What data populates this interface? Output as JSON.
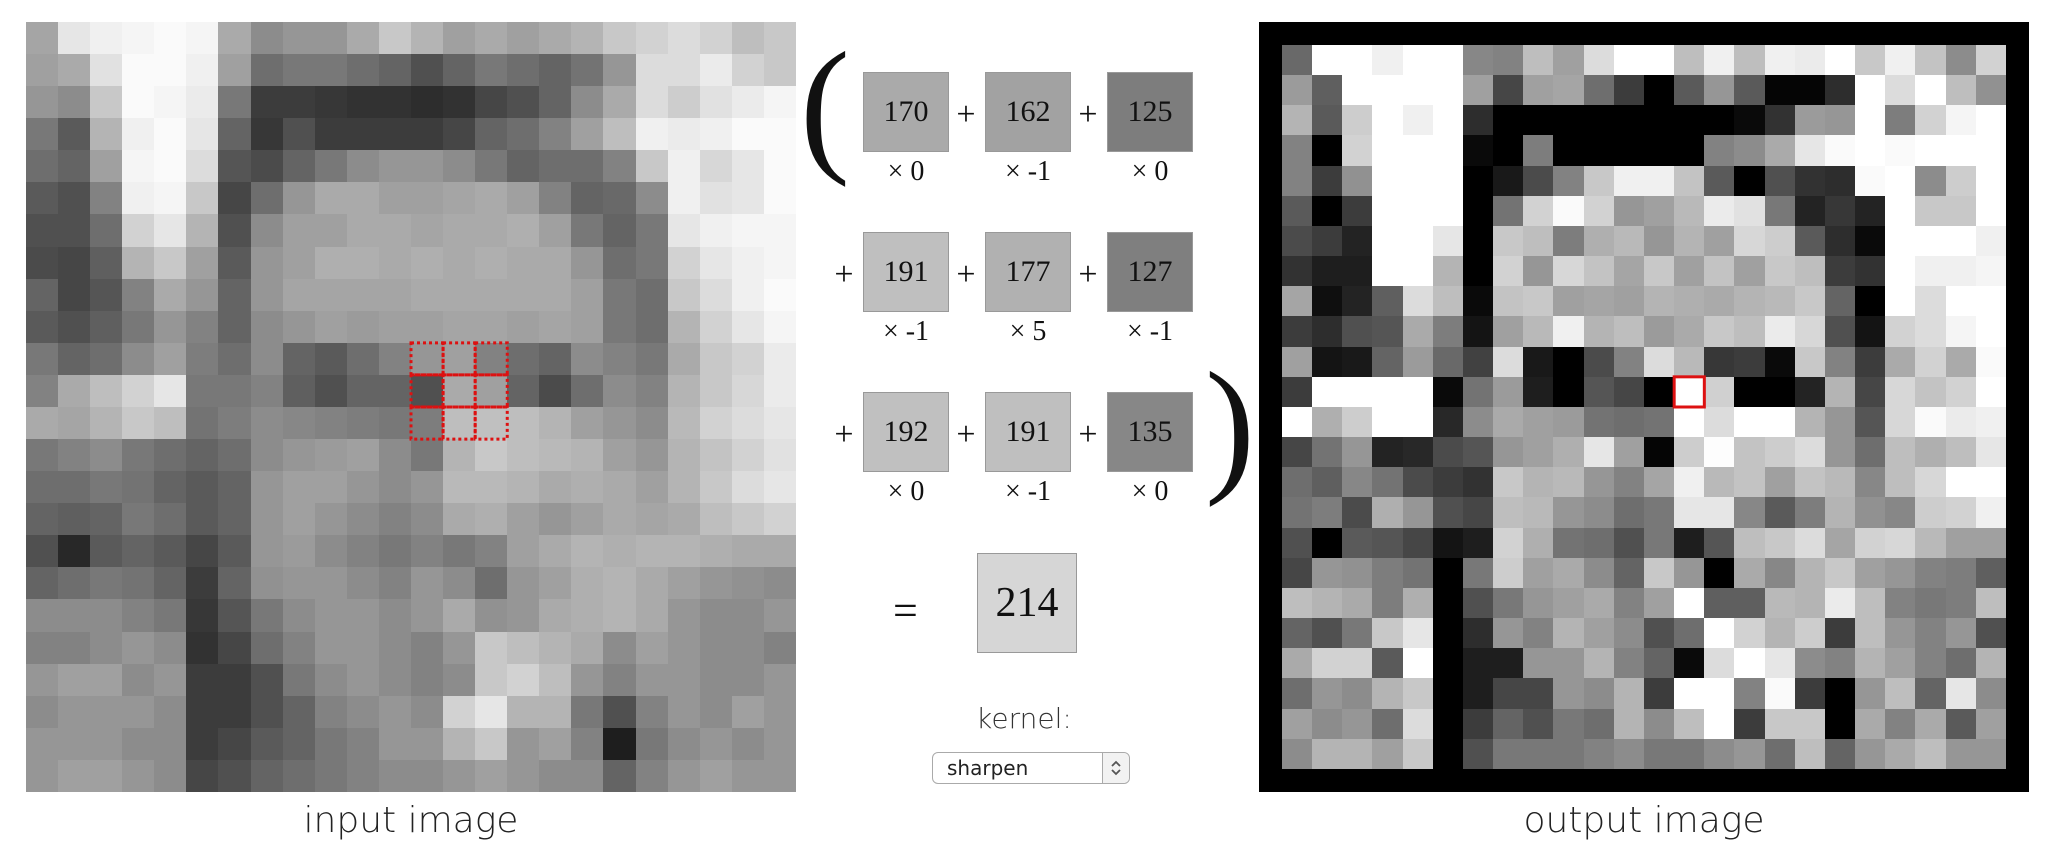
{
  "input_caption": "input image",
  "output_caption": "output image",
  "computation": {
    "rows": [
      {
        "lead": "",
        "terms": [
          {
            "value": "170",
            "weight": "× 0"
          },
          {
            "value": "162",
            "weight": "× -1"
          },
          {
            "value": "125",
            "weight": "× 0"
          }
        ]
      },
      {
        "lead": "+",
        "terms": [
          {
            "value": "191",
            "weight": "× -1"
          },
          {
            "value": "177",
            "weight": "× 5"
          },
          {
            "value": "127",
            "weight": "× -1"
          }
        ]
      },
      {
        "lead": "+",
        "terms": [
          {
            "value": "192",
            "weight": "× 0"
          },
          {
            "value": "191",
            "weight": "× -1"
          },
          {
            "value": "135",
            "weight": "× 0"
          }
        ]
      }
    ],
    "plus": "+",
    "open_paren": "(",
    "close_paren": ")",
    "equals": "=",
    "result": "214"
  },
  "kernel": {
    "label": "kernel:",
    "selected": "sharpen"
  },
  "colors": {
    "highlight": "#dd1111",
    "output_frame": "#000000"
  },
  "input_image": [
    [
      165,
      230,
      240,
      245,
      250,
      245,
      170,
      140,
      150,
      150,
      170,
      200,
      180,
      160,
      170,
      160,
      170,
      180,
      200,
      210,
      220,
      210,
      190,
      200
    ],
    [
      160,
      170,
      225,
      250,
      250,
      240,
      160,
      110,
      120,
      120,
      110,
      100,
      80,
      100,
      120,
      110,
      100,
      115,
      150,
      220,
      220,
      235,
      210,
      200
    ],
    [
      150,
      140,
      200,
      250,
      245,
      235,
      120,
      60,
      60,
      55,
      50,
      50,
      45,
      50,
      70,
      80,
      100,
      140,
      170,
      220,
      205,
      225,
      235,
      245
    ],
    [
      120,
      90,
      180,
      240,
      250,
      230,
      100,
      55,
      80,
      60,
      60,
      60,
      60,
      70,
      100,
      110,
      130,
      160,
      190,
      240,
      235,
      240,
      250,
      250
    ],
    [
      110,
      100,
      160,
      245,
      250,
      220,
      85,
      75,
      100,
      120,
      140,
      150,
      150,
      140,
      120,
      100,
      110,
      110,
      130,
      200,
      240,
      215,
      230,
      250
    ],
    [
      90,
      80,
      130,
      240,
      245,
      200,
      70,
      110,
      150,
      170,
      170,
      160,
      160,
      165,
      170,
      160,
      130,
      100,
      105,
      140,
      240,
      225,
      230,
      250
    ],
    [
      80,
      80,
      110,
      210,
      230,
      180,
      80,
      140,
      160,
      160,
      170,
      170,
      165,
      170,
      170,
      175,
      160,
      120,
      100,
      120,
      230,
      240,
      245,
      245
    ],
    [
      75,
      70,
      95,
      180,
      200,
      160,
      90,
      150,
      160,
      175,
      175,
      170,
      175,
      170,
      175,
      170,
      170,
      150,
      110,
      120,
      210,
      230,
      240,
      245
    ],
    [
      100,
      70,
      85,
      130,
      170,
      150,
      100,
      150,
      165,
      165,
      165,
      165,
      170,
      170,
      170,
      170,
      170,
      160,
      120,
      110,
      200,
      220,
      240,
      250
    ],
    [
      90,
      80,
      95,
      120,
      150,
      130,
      100,
      140,
      150,
      160,
      155,
      160,
      160,
      165,
      165,
      160,
      165,
      160,
      120,
      110,
      180,
      210,
      230,
      245
    ],
    [
      120,
      100,
      110,
      140,
      160,
      125,
      110,
      140,
      100,
      90,
      110,
      130,
      150,
      160,
      130,
      110,
      100,
      140,
      130,
      120,
      170,
      200,
      210,
      235
    ],
    [
      130,
      170,
      190,
      210,
      230,
      120,
      120,
      130,
      95,
      80,
      100,
      100,
      80,
      170,
      160,
      100,
      75,
      110,
      140,
      130,
      180,
      200,
      215,
      235
    ],
    [
      170,
      165,
      180,
      200,
      190,
      115,
      125,
      140,
      135,
      130,
      125,
      120,
      125,
      190,
      192,
      190,
      180,
      160,
      150,
      140,
      185,
      210,
      220,
      230
    ],
    [
      120,
      130,
      140,
      120,
      110,
      100,
      110,
      140,
      150,
      155,
      160,
      140,
      120,
      180,
      200,
      190,
      185,
      180,
      160,
      150,
      180,
      195,
      210,
      225
    ],
    [
      110,
      110,
      120,
      115,
      100,
      90,
      100,
      150,
      160,
      160,
      150,
      140,
      150,
      185,
      185,
      180,
      170,
      175,
      170,
      160,
      180,
      200,
      220,
      230
    ],
    [
      100,
      95,
      100,
      120,
      110,
      90,
      100,
      150,
      160,
      150,
      140,
      130,
      140,
      170,
      175,
      160,
      150,
      160,
      170,
      165,
      170,
      190,
      200,
      210
    ],
    [
      80,
      40,
      90,
      100,
      90,
      70,
      90,
      150,
      155,
      140,
      130,
      120,
      130,
      120,
      130,
      160,
      170,
      180,
      175,
      180,
      180,
      175,
      170,
      170
    ],
    [
      100,
      110,
      120,
      115,
      100,
      60,
      100,
      145,
      150,
      150,
      140,
      130,
      150,
      140,
      110,
      150,
      160,
      175,
      180,
      170,
      160,
      150,
      145,
      140
    ],
    [
      140,
      140,
      140,
      130,
      120,
      55,
      85,
      120,
      140,
      150,
      150,
      140,
      150,
      170,
      145,
      150,
      170,
      175,
      180,
      170,
      150,
      140,
      140,
      150
    ],
    [
      130,
      130,
      140,
      150,
      140,
      50,
      70,
      110,
      130,
      150,
      150,
      140,
      130,
      150,
      200,
      190,
      180,
      170,
      140,
      160,
      150,
      140,
      140,
      130
    ],
    [
      150,
      160,
      160,
      140,
      150,
      60,
      60,
      80,
      120,
      140,
      150,
      140,
      130,
      140,
      200,
      210,
      190,
      150,
      130,
      150,
      150,
      140,
      140,
      150
    ],
    [
      140,
      150,
      150,
      150,
      140,
      60,
      60,
      80,
      100,
      130,
      140,
      150,
      140,
      210,
      230,
      180,
      180,
      120,
      80,
      130,
      150,
      140,
      160,
      150
    ],
    [
      150,
      150,
      150,
      140,
      140,
      60,
      70,
      90,
      100,
      120,
      130,
      150,
      150,
      180,
      200,
      150,
      160,
      130,
      30,
      120,
      140,
      150,
      140,
      150
    ],
    [
      150,
      160,
      160,
      150,
      140,
      70,
      80,
      100,
      110,
      120,
      130,
      140,
      140,
      150,
      160,
      150,
      140,
      140,
      100,
      130,
      150,
      160,
      150,
      150
    ]
  ]
}
